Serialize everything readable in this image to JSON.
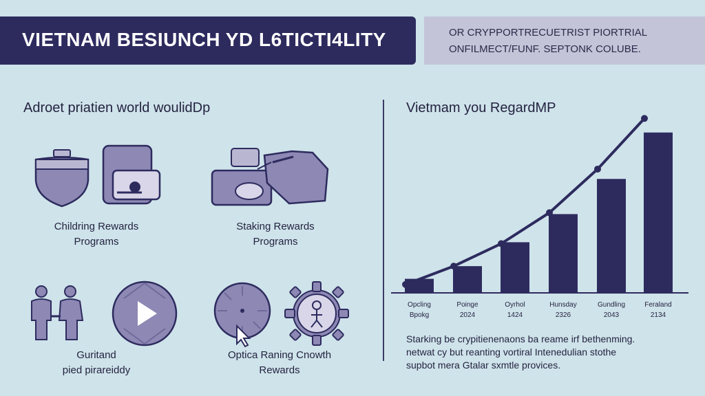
{
  "header": {
    "title": "VIETNAM BESIUNCH YD L6TICTI4LITY",
    "subtitle": "OR CRYPPORTRECUETRIST PIORTRIAL\nONFILMECT/FUNF. SEPTONK COLUBE."
  },
  "left_panel": {
    "heading": "Adroet priatien world woulidDp",
    "items": [
      {
        "label": "Childring Rewards\nPrograms",
        "icon": "shield-wallet-icon"
      },
      {
        "label": "Staking Rewards\nPrograms",
        "icon": "hand-coins-icon"
      },
      {
        "label": "Guritand\npied pirareiddy",
        "icon": "people-icon"
      },
      {
        "label": "",
        "icon": "play-disc-icon"
      },
      {
        "label": "Optica Raning Cnowth\nRewards",
        "icon": "dial-cursor-icon"
      },
      {
        "label": "",
        "icon": "gear-person-icon"
      }
    ]
  },
  "chart": {
    "heading": "Vietmam you RegardMP",
    "footnote": "Starking be crypitienenaons ba reame irf bethenming.\nnetwat cy but reanting vortiral Intenedulian stothe\nsupbot mera Gtalar sxmtle provices."
  },
  "chart_data": {
    "type": "bar",
    "categories": [
      "Opcling\nBpokg",
      "Poinge\n2024",
      "Oyrhol\n1424",
      "Hunsday\n2326",
      "Gundling\n2043",
      "Feraland\n2134"
    ],
    "values": [
      1,
      1.9,
      3.6,
      5.6,
      8.1,
      11.4
    ],
    "line_values": [
      0.6,
      1.9,
      3.5,
      5.7,
      8.8,
      12.4
    ],
    "ylim": [
      0,
      13
    ],
    "colors": {
      "bar": "#2d2b5e",
      "line": "#2d2b5e"
    }
  }
}
